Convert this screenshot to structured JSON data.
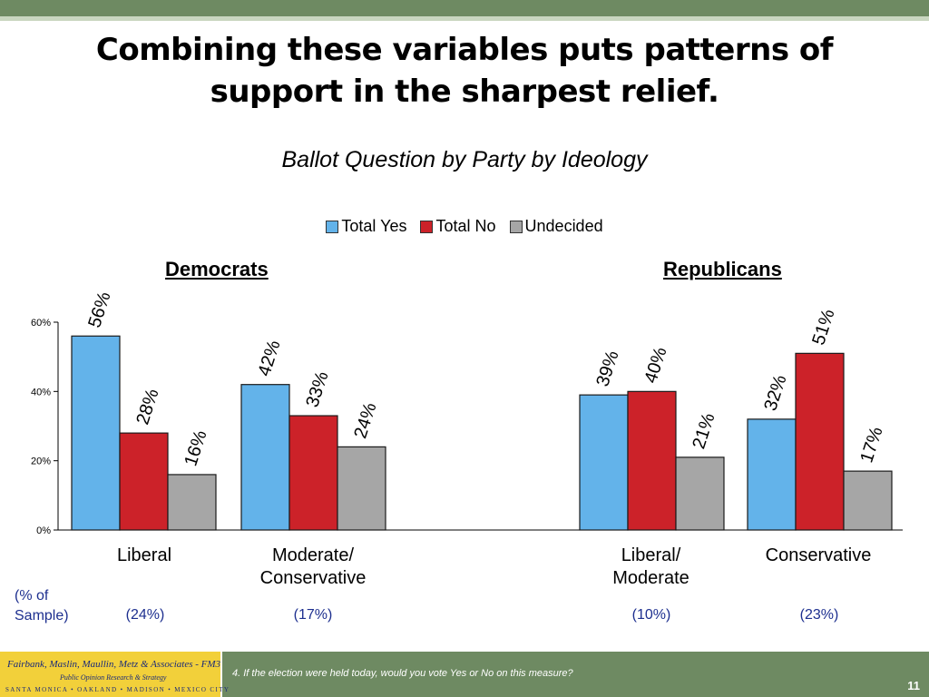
{
  "slide": {
    "title": "Combining these variables puts patterns of support in the sharpest relief.",
    "subtitle": "Ballot Question by Party by Ideology",
    "footnote": "4. If the election were held today, would you vote Yes or No on this measure?",
    "page_number": "11",
    "logo": {
      "line1": "Fairbank, Maslin, Maullin, Metz & Associates - FM3",
      "line2": "Public Opinion Research & Strategy",
      "line3": "SANTA MONICA • OAKLAND • MADISON • MEXICO CITY"
    },
    "sample": {
      "caption_line1": "(% of",
      "caption_line2": "Sample)",
      "values": [
        "(24%)",
        "(17%)",
        "(10%)",
        "(23%)"
      ]
    },
    "category_labels": {
      "liberal_dem_1": "Liberal",
      "modcons_1": "Moderate/",
      "modcons_2": "Conservative",
      "libmod_1": "Liberal/",
      "libmod_2": "Moderate",
      "conservative_rep_1": "Conservative"
    }
  },
  "chart_data": {
    "type": "bar",
    "groups": [
      "Democrats",
      "Republicans"
    ],
    "categories": [
      "Liberal",
      "Moderate/ Conservative",
      "Liberal/ Moderate",
      "Conservative"
    ],
    "category_group": [
      "Democrats",
      "Democrats",
      "Republicans",
      "Republicans"
    ],
    "series": [
      {
        "name": "Total Yes",
        "color": "#63b3ea",
        "values": [
          56,
          42,
          39,
          32
        ]
      },
      {
        "name": "Total No",
        "color": "#cc2229",
        "values": [
          28,
          33,
          40,
          51
        ]
      },
      {
        "name": "Undecided",
        "color": "#a6a6a6",
        "values": [
          16,
          24,
          21,
          17
        ]
      }
    ],
    "y_ticks": [
      "0%",
      "20%",
      "40%",
      "60%"
    ],
    "ylim": [
      0,
      60
    ],
    "data_label_suffix": "%",
    "legend_position": "top",
    "grid": false
  }
}
